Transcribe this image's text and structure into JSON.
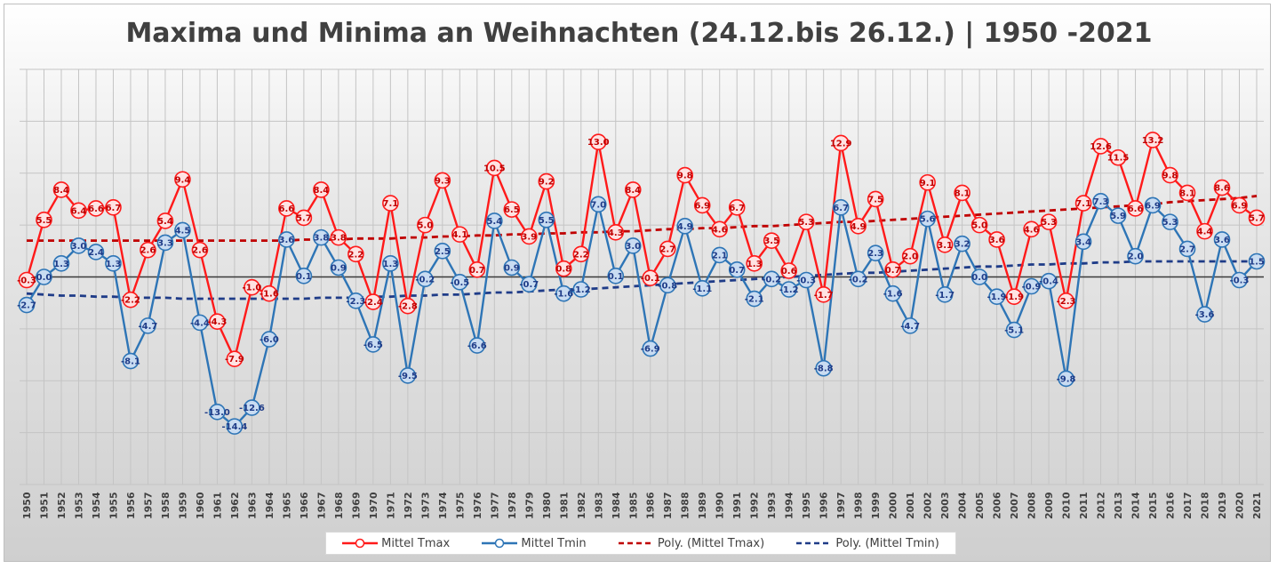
{
  "chart_data": {
    "type": "line",
    "title": "Maxima und Minima an Weihnachten (24.12.bis 26.12.) | 1950 -2021",
    "x": [
      1950,
      1951,
      1952,
      1953,
      1954,
      1955,
      1956,
      1957,
      1958,
      1959,
      1960,
      1961,
      1962,
      1963,
      1964,
      1965,
      1966,
      1967,
      1968,
      1969,
      1970,
      1971,
      1972,
      1973,
      1974,
      1975,
      1976,
      1977,
      1978,
      1979,
      1980,
      1981,
      1982,
      1983,
      1984,
      1985,
      1986,
      1987,
      1988,
      1989,
      1990,
      1991,
      1992,
      1993,
      1994,
      1995,
      1996,
      1997,
      1998,
      1999,
      2000,
      2001,
      2002,
      2003,
      2004,
      2005,
      2006,
      2007,
      2008,
      2009,
      2010,
      2011,
      2012,
      2013,
      2014,
      2015,
      2016,
      2017,
      2018,
      2019,
      2020,
      2021
    ],
    "ylim": [
      -20,
      20
    ],
    "grid": true,
    "legend_position": "bottom",
    "series": [
      {
        "name": "Mittel Tmax",
        "color": "#ff1a1a",
        "marker": "circle",
        "values": [
          -0.3,
          5.5,
          8.4,
          6.4,
          6.6,
          6.7,
          -2.2,
          2.6,
          5.4,
          9.4,
          2.6,
          -4.3,
          -7.9,
          -1.0,
          -1.6,
          6.6,
          5.7,
          8.4,
          3.8,
          2.2,
          -2.4,
          7.1,
          -2.8,
          5.0,
          9.3,
          4.1,
          0.7,
          10.5,
          6.5,
          3.9,
          9.2,
          0.8,
          2.2,
          13.0,
          4.3,
          8.4,
          -0.1,
          2.7,
          9.8,
          6.9,
          4.6,
          6.7,
          1.3,
          3.5,
          0.6,
          5.3,
          -1.7,
          12.9,
          4.9,
          7.5,
          0.7,
          2.0,
          9.1,
          3.1,
          8.1,
          5.0,
          3.6,
          -1.9,
          4.6,
          5.3,
          -2.3,
          7.1,
          12.6,
          11.5,
          6.6,
          13.2,
          9.8,
          8.1,
          4.4,
          8.6,
          6.9,
          5.7
        ]
      },
      {
        "name": "Mittel Tmin",
        "color": "#2e75b6",
        "marker": "circle",
        "values": [
          -2.7,
          0.0,
          1.3,
          3.0,
          2.4,
          1.3,
          -8.1,
          -4.7,
          3.3,
          4.5,
          -4.4,
          -13.0,
          -14.4,
          -12.6,
          -6.0,
          3.6,
          0.1,
          3.8,
          0.9,
          -2.3,
          -6.5,
          1.3,
          -9.5,
          -0.2,
          2.5,
          -0.5,
          -6.6,
          5.4,
          0.9,
          -0.7,
          5.5,
          -1.6,
          -1.2,
          7.0,
          0.1,
          3.0,
          -6.9,
          -0.8,
          4.9,
          -1.1,
          2.1,
          0.7,
          -2.1,
          -0.2,
          -1.2,
          -0.3,
          -8.8,
          6.7,
          -0.2,
          2.3,
          -1.6,
          -4.7,
          5.6,
          -1.7,
          3.2,
          0.0,
          -1.9,
          -5.1,
          -0.9,
          -0.4,
          -9.8,
          3.4,
          7.3,
          5.9,
          2.0,
          6.9,
          5.3,
          2.7,
          -3.6,
          3.6,
          -0.3,
          1.5
        ]
      },
      {
        "name": "Poly. (Mittel Tmax)",
        "color": "#c00000",
        "style": "dashed",
        "values": [
          3.5,
          3.5,
          3.5,
          3.5,
          3.5,
          3.5,
          3.5,
          3.5,
          3.5,
          3.5,
          3.5,
          3.5,
          3.5,
          3.5,
          3.5,
          3.5,
          3.6,
          3.6,
          3.6,
          3.7,
          3.7,
          3.7,
          3.8,
          3.8,
          3.9,
          3.9,
          4.0,
          4.0,
          4.1,
          4.1,
          4.2,
          4.2,
          4.3,
          4.3,
          4.4,
          4.4,
          4.5,
          4.6,
          4.6,
          4.7,
          4.7,
          4.8,
          4.9,
          4.9,
          5.0,
          5.1,
          5.2,
          5.3,
          5.3,
          5.4,
          5.5,
          5.6,
          5.7,
          5.8,
          5.9,
          6.0,
          6.1,
          6.2,
          6.3,
          6.4,
          6.5,
          6.6,
          6.7,
          6.8,
          6.9,
          7.0,
          7.2,
          7.3,
          7.4,
          7.5,
          7.6,
          7.8
        ]
      },
      {
        "name": "Poly. (Mittel Tmin)",
        "color": "#1f3c88",
        "style": "dashed",
        "values": [
          -1.6,
          -1.7,
          -1.8,
          -1.8,
          -1.9,
          -1.9,
          -2.0,
          -2.0,
          -2.0,
          -2.1,
          -2.1,
          -2.1,
          -2.1,
          -2.1,
          -2.1,
          -2.1,
          -2.1,
          -2.0,
          -2.0,
          -2.0,
          -1.9,
          -1.9,
          -1.8,
          -1.8,
          -1.7,
          -1.7,
          -1.6,
          -1.5,
          -1.5,
          -1.4,
          -1.3,
          -1.2,
          -1.2,
          -1.1,
          -1.0,
          -0.9,
          -0.8,
          -0.7,
          -0.6,
          -0.5,
          -0.4,
          -0.3,
          -0.2,
          -0.1,
          0.0,
          0.1,
          0.2,
          0.3,
          0.4,
          0.4,
          0.5,
          0.6,
          0.7,
          0.8,
          0.9,
          1.0,
          1.0,
          1.1,
          1.2,
          1.2,
          1.3,
          1.3,
          1.4,
          1.4,
          1.5,
          1.5,
          1.5,
          1.5,
          1.5,
          1.5,
          1.5,
          1.5
        ]
      }
    ]
  }
}
